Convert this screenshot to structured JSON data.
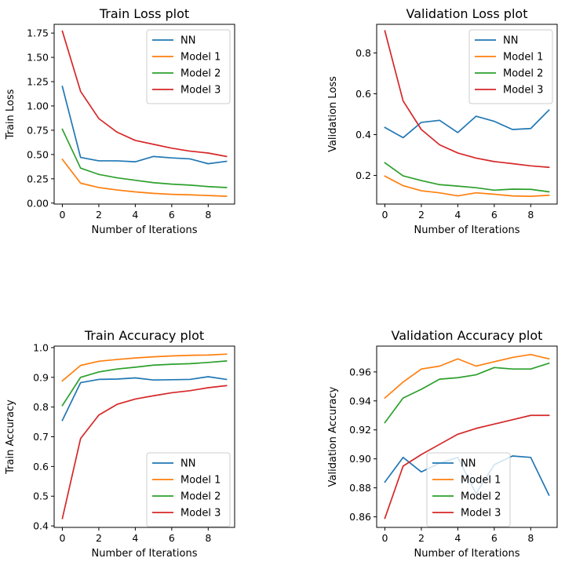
{
  "chart_data": [
    {
      "type": "line",
      "title": "Train Loss plot",
      "xlabel": "Number of Iterations",
      "ylabel": "Train Loss",
      "x": [
        0,
        1,
        2,
        3,
        4,
        5,
        6,
        7,
        8,
        9
      ],
      "xlim": [
        -0.45,
        9.45
      ],
      "ylim": [
        -0.01,
        1.84
      ],
      "xticks": [
        0,
        2,
        4,
        6,
        8
      ],
      "yticks": [
        0.0,
        0.25,
        0.5,
        0.75,
        1.0,
        1.25,
        1.5,
        1.75
      ],
      "ytick_labels": [
        "0.00",
        "0.25",
        "0.50",
        "0.75",
        "1.00",
        "1.25",
        "1.50",
        "1.75"
      ],
      "legend": "top-right",
      "grid": false,
      "series": [
        {
          "name": "NN",
          "color": "#1f77b4",
          "values": [
            1.2,
            0.47,
            0.435,
            0.435,
            0.425,
            0.48,
            0.465,
            0.455,
            0.405,
            0.43
          ]
        },
        {
          "name": "Model 1",
          "color": "#ff7f0e",
          "values": [
            0.45,
            0.205,
            0.16,
            0.135,
            0.115,
            0.1,
            0.09,
            0.085,
            0.078,
            0.07
          ]
        },
        {
          "name": "Model 2",
          "color": "#2ca02c",
          "values": [
            0.76,
            0.36,
            0.295,
            0.26,
            0.235,
            0.21,
            0.195,
            0.185,
            0.17,
            0.16
          ]
        },
        {
          "name": "Model 3",
          "color": "#d62728",
          "values": [
            1.77,
            1.15,
            0.87,
            0.73,
            0.645,
            0.605,
            0.565,
            0.535,
            0.515,
            0.48
          ]
        }
      ]
    },
    {
      "type": "line",
      "title": "Validation Loss plot",
      "xlabel": "Number of Iterations",
      "ylabel": "Validation Loss",
      "x": [
        0,
        1,
        2,
        3,
        4,
        5,
        6,
        7,
        8,
        9
      ],
      "xlim": [
        -0.45,
        9.45
      ],
      "ylim": [
        0.06,
        0.94
      ],
      "xticks": [
        0,
        2,
        4,
        6,
        8
      ],
      "yticks": [
        0.2,
        0.4,
        0.6,
        0.8
      ],
      "ytick_labels": [
        "0.2",
        "0.4",
        "0.6",
        "0.8"
      ],
      "legend": "top-right",
      "grid": false,
      "series": [
        {
          "name": "NN",
          "color": "#1f77b4",
          "values": [
            0.435,
            0.385,
            0.46,
            0.47,
            0.41,
            0.49,
            0.465,
            0.425,
            0.43,
            0.52
          ]
        },
        {
          "name": "Model 1",
          "color": "#ff7f0e",
          "values": [
            0.197,
            0.15,
            0.125,
            0.115,
            0.1,
            0.115,
            0.108,
            0.1,
            0.098,
            0.103
          ]
        },
        {
          "name": "Model 2",
          "color": "#2ca02c",
          "values": [
            0.262,
            0.198,
            0.175,
            0.155,
            0.148,
            0.14,
            0.128,
            0.133,
            0.132,
            0.12
          ]
        },
        {
          "name": "Model 3",
          "color": "#d62728",
          "values": [
            0.908,
            0.565,
            0.425,
            0.35,
            0.31,
            0.285,
            0.268,
            0.258,
            0.247,
            0.24
          ]
        }
      ]
    },
    {
      "type": "line",
      "title": "Train Accuracy plot",
      "xlabel": "Number of Iterations",
      "ylabel": "Train Accuracy",
      "x": [
        0,
        1,
        2,
        3,
        4,
        5,
        6,
        7,
        8,
        9
      ],
      "xlim": [
        -0.45,
        9.45
      ],
      "ylim": [
        0.395,
        1.005
      ],
      "xticks": [
        0,
        2,
        4,
        6,
        8
      ],
      "yticks": [
        0.4,
        0.5,
        0.6,
        0.7,
        0.8,
        0.9,
        1.0
      ],
      "ytick_labels": [
        "0.4",
        "0.5",
        "0.6",
        "0.7",
        "0.8",
        "0.9",
        "1.0"
      ],
      "legend": "bottom-right",
      "grid": false,
      "series": [
        {
          "name": "NN",
          "color": "#1f77b4",
          "values": [
            0.755,
            0.882,
            0.893,
            0.894,
            0.898,
            0.891,
            0.892,
            0.893,
            0.902,
            0.893
          ]
        },
        {
          "name": "Model 1",
          "color": "#ff7f0e",
          "values": [
            0.888,
            0.94,
            0.954,
            0.96,
            0.965,
            0.969,
            0.972,
            0.974,
            0.975,
            0.978
          ]
        },
        {
          "name": "Model 2",
          "color": "#2ca02c",
          "values": [
            0.805,
            0.9,
            0.918,
            0.928,
            0.934,
            0.941,
            0.944,
            0.946,
            0.95,
            0.955
          ]
        },
        {
          "name": "Model 3",
          "color": "#d62728",
          "values": [
            0.425,
            0.694,
            0.773,
            0.809,
            0.827,
            0.838,
            0.848,
            0.855,
            0.865,
            0.872
          ]
        }
      ]
    },
    {
      "type": "line",
      "title": "Validation Accuracy plot",
      "xlabel": "Number of Iterations",
      "ylabel": "Validation Accuracy",
      "x": [
        0,
        1,
        2,
        3,
        4,
        5,
        6,
        7,
        8,
        9
      ],
      "xlim": [
        -0.45,
        9.45
      ],
      "ylim": [
        0.8527,
        0.9778
      ],
      "xticks": [
        0,
        2,
        4,
        6,
        8
      ],
      "yticks": [
        0.86,
        0.88,
        0.9,
        0.92,
        0.94,
        0.96
      ],
      "ytick_labels": [
        "0.86",
        "0.88",
        "0.90",
        "0.92",
        "0.94",
        "0.96"
      ],
      "legend": "bottom-center",
      "grid": false,
      "series": [
        {
          "name": "NN",
          "color": "#1f77b4",
          "values": [
            0.884,
            0.901,
            0.891,
            0.897,
            0.901,
            0.876,
            0.896,
            0.902,
            0.901,
            0.875
          ]
        },
        {
          "name": "Model 1",
          "color": "#ff7f0e",
          "values": [
            0.942,
            0.953,
            0.962,
            0.964,
            0.969,
            0.964,
            0.967,
            0.97,
            0.972,
            0.969
          ]
        },
        {
          "name": "Model 2",
          "color": "#2ca02c",
          "values": [
            0.925,
            0.942,
            0.948,
            0.955,
            0.956,
            0.958,
            0.963,
            0.962,
            0.962,
            0.966
          ]
        },
        {
          "name": "Model 3",
          "color": "#d62728",
          "values": [
            0.859,
            0.895,
            0.903,
            0.91,
            0.917,
            0.921,
            0.924,
            0.927,
            0.93,
            0.93
          ]
        }
      ]
    }
  ]
}
